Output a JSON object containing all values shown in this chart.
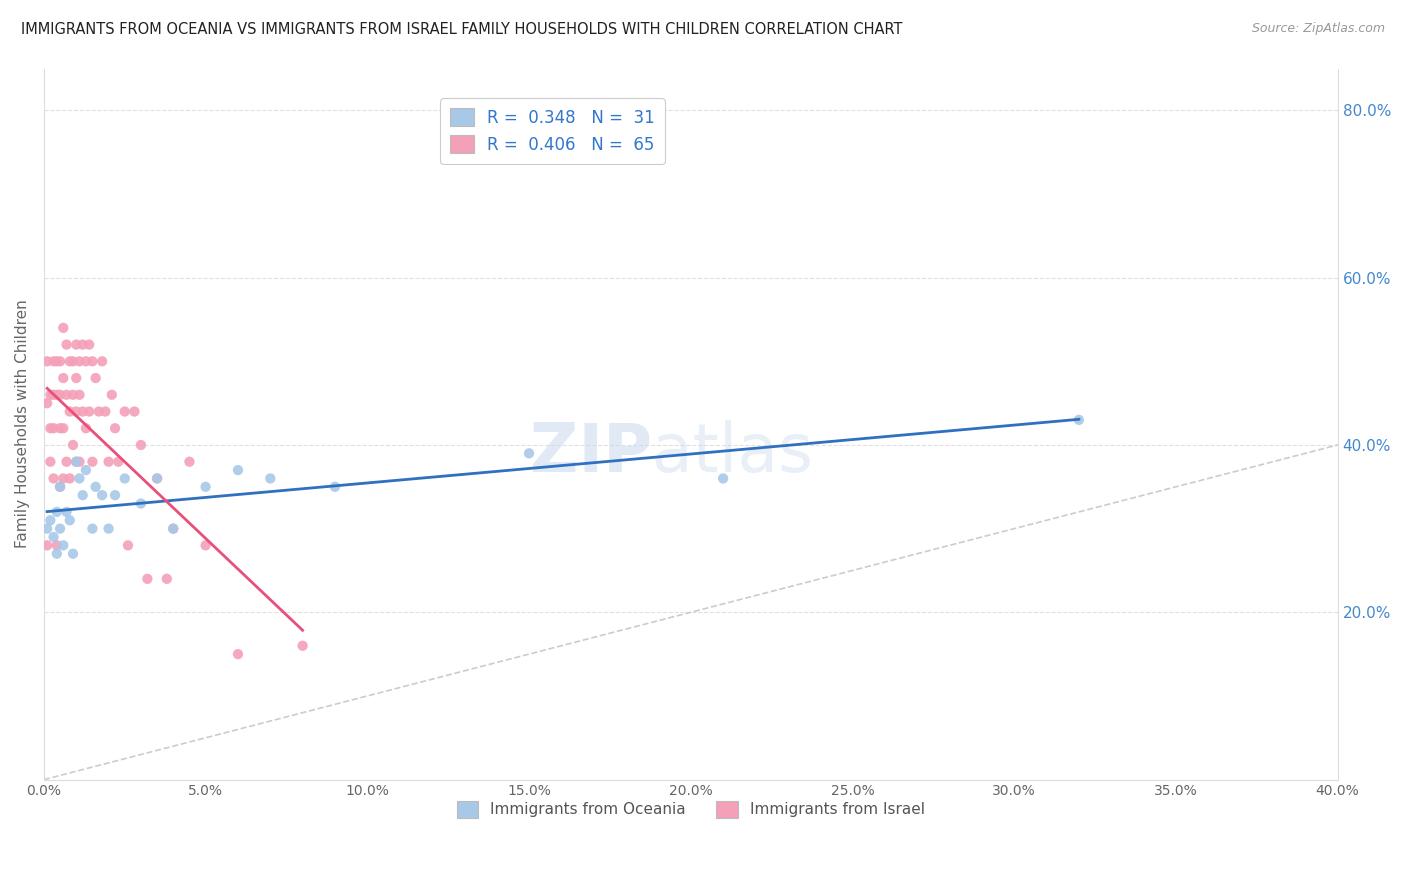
{
  "title": "IMMIGRANTS FROM OCEANIA VS IMMIGRANTS FROM ISRAEL FAMILY HOUSEHOLDS WITH CHILDREN CORRELATION CHART",
  "source": "Source: ZipAtlas.com",
  "ylabel": "Family Households with Children",
  "xlim": [
    0.0,
    0.4
  ],
  "ylim": [
    0.0,
    0.85
  ],
  "xticks": [
    0.0,
    0.05,
    0.1,
    0.15,
    0.2,
    0.25,
    0.3,
    0.35,
    0.4
  ],
  "yticks_right": [
    0.2,
    0.4,
    0.6,
    0.8
  ],
  "blue_color": "#a8c8e8",
  "pink_color": "#f4a0b8",
  "blue_line_color": "#3070c0",
  "pink_line_color": "#e8507a",
  "diag_color": "#cccccc",
  "legend_oceania": "Immigrants from Oceania",
  "legend_israel": "Immigrants from Israel",
  "R_oceania": 0.348,
  "N_oceania": 31,
  "R_israel": 0.406,
  "N_israel": 65,
  "oceania_x": [
    0.001,
    0.002,
    0.003,
    0.004,
    0.004,
    0.005,
    0.005,
    0.006,
    0.007,
    0.008,
    0.009,
    0.01,
    0.011,
    0.012,
    0.013,
    0.015,
    0.016,
    0.018,
    0.02,
    0.022,
    0.025,
    0.03,
    0.035,
    0.04,
    0.05,
    0.06,
    0.07,
    0.09,
    0.15,
    0.21,
    0.32
  ],
  "oceania_y": [
    0.3,
    0.31,
    0.29,
    0.32,
    0.27,
    0.3,
    0.35,
    0.28,
    0.32,
    0.31,
    0.27,
    0.38,
    0.36,
    0.34,
    0.37,
    0.3,
    0.35,
    0.34,
    0.3,
    0.34,
    0.36,
    0.33,
    0.36,
    0.3,
    0.35,
    0.37,
    0.36,
    0.35,
    0.39,
    0.36,
    0.43
  ],
  "israel_x": [
    0.001,
    0.001,
    0.001,
    0.002,
    0.002,
    0.002,
    0.003,
    0.003,
    0.003,
    0.003,
    0.004,
    0.004,
    0.004,
    0.005,
    0.005,
    0.005,
    0.005,
    0.006,
    0.006,
    0.006,
    0.006,
    0.007,
    0.007,
    0.007,
    0.008,
    0.008,
    0.008,
    0.009,
    0.009,
    0.009,
    0.01,
    0.01,
    0.01,
    0.01,
    0.011,
    0.011,
    0.011,
    0.012,
    0.012,
    0.013,
    0.013,
    0.014,
    0.014,
    0.015,
    0.015,
    0.016,
    0.017,
    0.018,
    0.019,
    0.02,
    0.021,
    0.022,
    0.023,
    0.025,
    0.026,
    0.028,
    0.03,
    0.032,
    0.035,
    0.038,
    0.04,
    0.045,
    0.05,
    0.06,
    0.08
  ],
  "israel_y": [
    0.45,
    0.5,
    0.28,
    0.46,
    0.42,
    0.38,
    0.5,
    0.46,
    0.42,
    0.36,
    0.5,
    0.46,
    0.28,
    0.5,
    0.46,
    0.42,
    0.35,
    0.54,
    0.48,
    0.42,
    0.36,
    0.52,
    0.46,
    0.38,
    0.5,
    0.44,
    0.36,
    0.5,
    0.46,
    0.4,
    0.52,
    0.48,
    0.44,
    0.38,
    0.5,
    0.46,
    0.38,
    0.52,
    0.44,
    0.5,
    0.42,
    0.52,
    0.44,
    0.5,
    0.38,
    0.48,
    0.44,
    0.5,
    0.44,
    0.38,
    0.46,
    0.42,
    0.38,
    0.44,
    0.28,
    0.44,
    0.4,
    0.24,
    0.36,
    0.24,
    0.3,
    0.38,
    0.28,
    0.15,
    0.16
  ],
  "watermark_zip": "ZIP",
  "watermark_atlas": "atlas",
  "grid_color": "#e0e0e0"
}
